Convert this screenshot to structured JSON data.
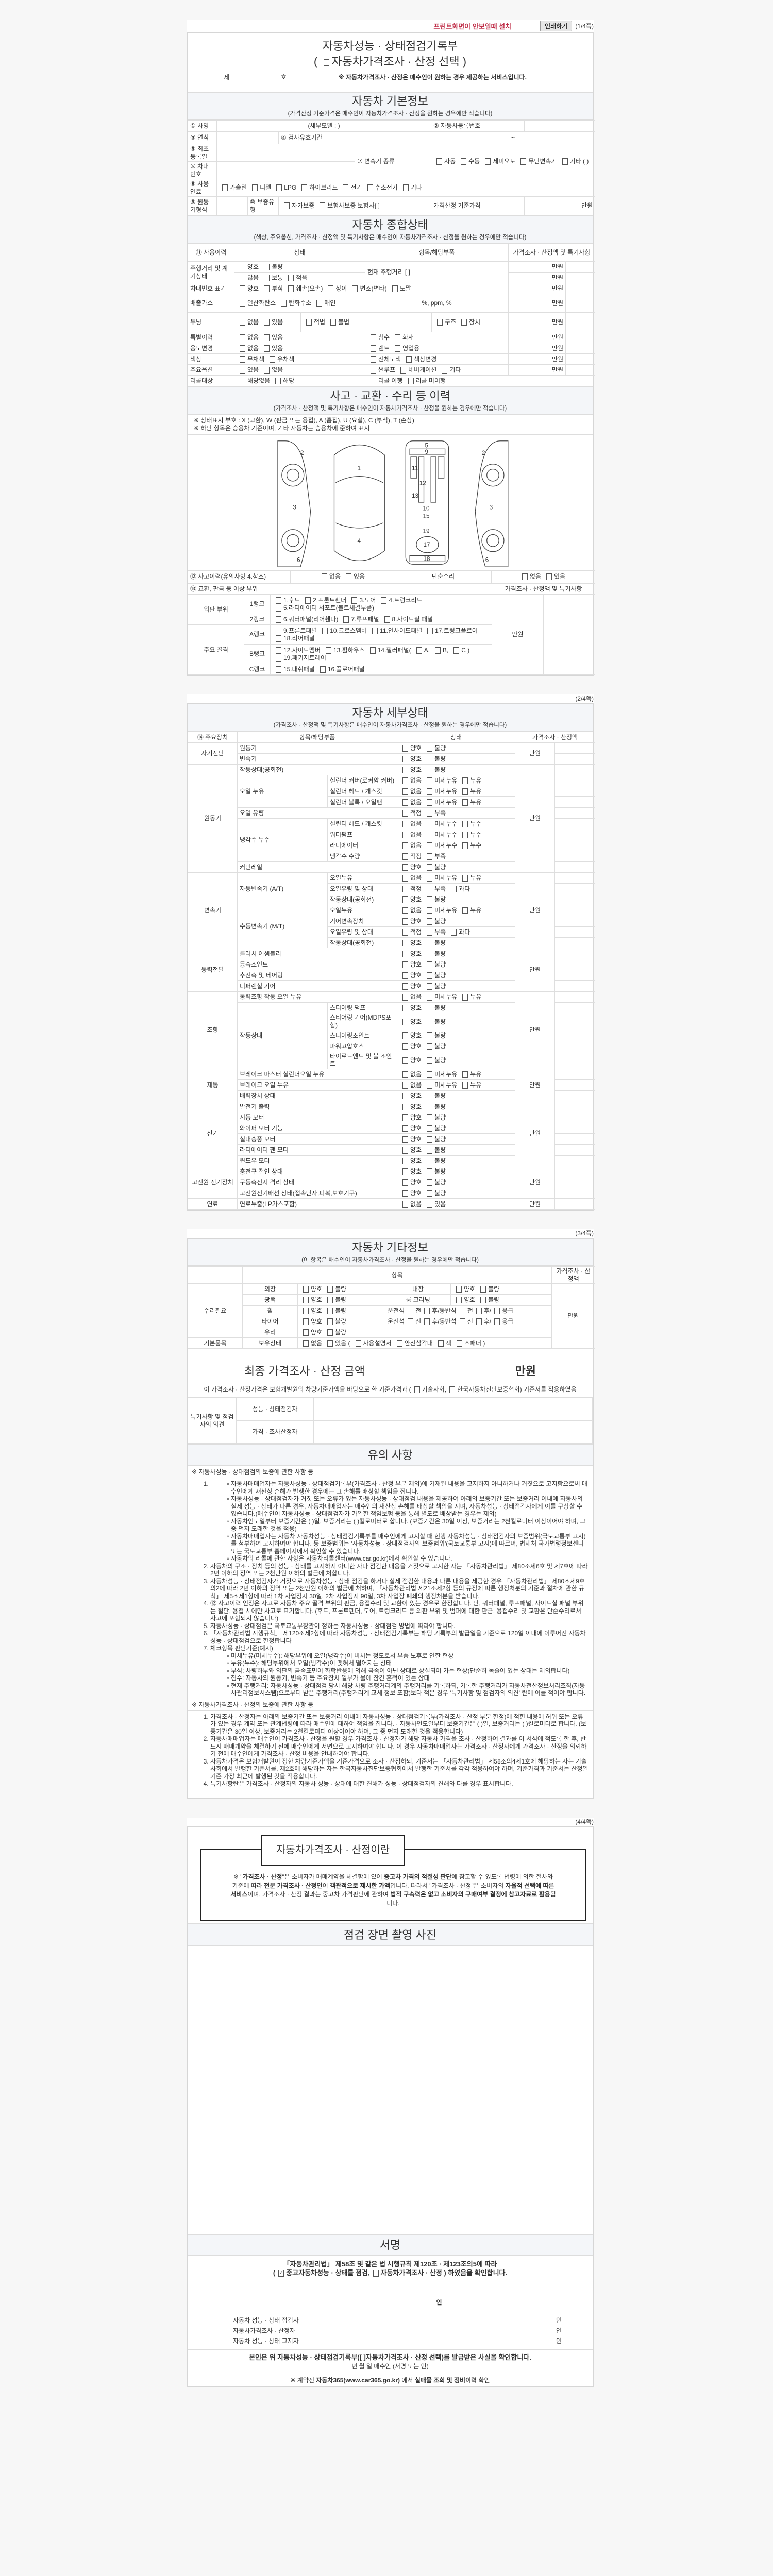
{
  "topbar": {
    "install_link": "프린트화면이 안보일때 설치",
    "print_button": "인쇄하기",
    "page1": "(1/4쪽)",
    "page2": "(2/4쪽)",
    "page3": "(3/4쪽)",
    "page4": "(4/4쪽)"
  },
  "title": {
    "line1": "자동차성능 · 상태점검기록부",
    "open": "(",
    "option": "자동차가격조사 · 산정 선택",
    "close": ")",
    "no_prefix": "제",
    "no_suffix": "호",
    "notice": "※ 자동차가격조사 · 산정은 매수인이 원하는 경우 제공하는 서비스입니다."
  },
  "basic": {
    "title": "자동차 기본정보",
    "subtitle": "(가격산정 기준가격은 매수인이 자동차가격조사 · 산정을 원하는 경우에만 적습니다)",
    "name": "① 차명",
    "detail_model": "(세부모델 :                    )",
    "reg_no": "② 자동차등록번호",
    "year": "③ 연식",
    "inspect_period": "④ 검사유효기간",
    "tilde": "~",
    "first_reg": "⑤ 최초등록일",
    "vin": "⑥ 차대번호",
    "transmission": "⑦ 변속기 종류",
    "transmission_opts": [
      "자동",
      "수동",
      "세미오토",
      "무단변속기",
      "기타 (              )"
    ],
    "fuel": "⑧ 사용연료",
    "fuel_opts": [
      "가솔린",
      "디젤",
      "LPG",
      "하이브리드",
      "전기",
      "수소전기",
      "기타"
    ],
    "engine": "⑨ 원동기형식",
    "warranty": "⑩ 보증유형",
    "warranty_opts": [
      "자가보증",
      "보험사보증 보험사[          ]"
    ],
    "base_price": "가격산정 기준가격",
    "won": "만원"
  },
  "overall": {
    "title": "자동차 종합상태",
    "subtitle": "(색상, 주요옵션, 가격조사 · 산정액 및 특기사항은 매수인이 자동차가격조사 · 산정을 원하는 경우에만 적습니다)",
    "h_history": "⑪ 사용이력",
    "h_state": "상태",
    "h_item": "항목/해당부품",
    "h_price": "가격조사 · 산정액 및 특기사항",
    "won": "만원",
    "mileage": "주행거리 및 계기상태",
    "mileage_opts1": [
      "양호",
      "불량"
    ],
    "mileage_opts2": [
      "많음",
      "보통",
      "적음"
    ],
    "mileage_now": "현재 주행거리 [                    ]",
    "vin_mark": "차대번호 표기",
    "vin_opts": [
      "양호",
      "부식",
      "훼손(오손)",
      "상이",
      "변조(변타)",
      "도말"
    ],
    "gas": "배출가스",
    "gas_opts": [
      "일산화탄소",
      "탄화수소",
      "매연"
    ],
    "gas_units": "%,          ppm,          %",
    "tuning": "튜닝",
    "tuning_opts": [
      "없음",
      "있음"
    ],
    "tuning_legal": [
      "적법",
      "불법"
    ],
    "tuning_kind": [
      "구조",
      "장치"
    ],
    "special": "특별이력",
    "special_opts": [
      "없음",
      "있음"
    ],
    "special_kind": [
      "침수",
      "화재"
    ],
    "usage": "용도변경",
    "usage_opts": [
      "없음",
      "있음"
    ],
    "usage_kind": [
      "렌트",
      "영업용"
    ],
    "color": "색상",
    "color_opts": [
      "무채색",
      "유채색"
    ],
    "color_kind": [
      "전체도색",
      "색상변경"
    ],
    "options": "주요옵션",
    "options_opts": [
      "있음",
      "없음"
    ],
    "options_kind": [
      "썬루프",
      "네비게이션",
      "기타"
    ],
    "recall": "리콜대상",
    "recall_opts": [
      "해당없음",
      "해당"
    ],
    "recall_kind": [
      "리콜 이행",
      "리콜 미이행"
    ]
  },
  "accident": {
    "title": "사고 · 교환 · 수리 등 이력",
    "subtitle": "(가격조사 · 산정액 및 특기사항은 매수인이 자동차가격조사 · 산정을 원하는 경우에만 적습니다)",
    "note1": "※ 상태표시 부호 : X (교환), W (판금 또는 용접), A (흠집), U (요철), C (부식), T (손상)",
    "note2": "※ 하단 항목은 승용차 기준이며, 기타 자동차는 승용차에 준하여 표시",
    "history": "⑫ 사고이력(유의사항 4.참조)",
    "history_opts": [
      "없음",
      "있음"
    ],
    "simple_repair": "단순수리",
    "simple_opts": [
      "없음",
      "있음"
    ],
    "abnormal": "⑬ 교환, 판금 등 이상 부위",
    "price_head": "가격조사 · 산정액 및 특기사항",
    "won": "만원",
    "outer": "외판 부위",
    "frame": "주요 골격",
    "rank1": "1랭크",
    "rank1_opts": [
      "1.후드",
      "2.프론트휀더",
      "3.도어",
      "4.트렁크리드",
      "5.라디에이터 서포트(볼트체결부품)"
    ],
    "rank2": "2랭크",
    "rank2_opts": [
      "6.쿼터패널(리어휀다)",
      "7.루프패널",
      "8.사이드실 패널"
    ],
    "rankA": "A랭크",
    "rankA_opts": [
      "9.프론트패널",
      "10.크로스멤버",
      "11.인사이드패널",
      "17.트렁크플로어",
      "18.리어패널"
    ],
    "rankB": "B랭크",
    "rankB_opts": [
      "12.사이드멤버",
      "13.휠하우스",
      "14.필러패널(",
      "A,",
      "B,",
      "C )",
      "19.패키지트레이"
    ],
    "rankC": "C랭크",
    "rankC_opts": [
      "15.대쉬패널",
      "16.플로어패널"
    ]
  },
  "diagram": {
    "n1": "1",
    "n2": "2",
    "n3": "3",
    "n4": "4",
    "n5": "5",
    "n6": "6",
    "n9": "9",
    "n10": "10",
    "n11": "11",
    "n12": "12",
    "n13": "13",
    "n15": "15",
    "n17": "17",
    "n18": "18",
    "n19": "19"
  },
  "detail": {
    "title": "자동차 세부상태",
    "subtitle": "(가격조사 · 산정액 및 특기사항은 매수인이 자동차가격조사 · 산정을 원하는 경우에만 적습니다)",
    "h_device": "⑭ 주요장치",
    "h_item": "항목/해당부품",
    "h_state": "상태",
    "h_price": "가격조사 · 산정액",
    "groups": [
      {
        "name": "자기진단",
        "amount": "만원",
        "items": [
          {
            "label": "원동기",
            "opts": [
              "양호",
              "불량"
            ]
          },
          {
            "label": "변속기",
            "opts": [
              "양호",
              "불량"
            ]
          }
        ]
      },
      {
        "name": "원동기",
        "amount": "만원",
        "items": [
          {
            "label": "작동상태(공회전)",
            "opts": [
              "양호",
              "불량"
            ]
          },
          {
            "label": "오일 누유",
            "subs": [
              {
                "label": "실린더 커버(로커암 커버)",
                "opts": [
                  "없음",
                  "미세누유",
                  "누유"
                ]
              },
              {
                "label": "실린더 헤드 / 개스킷",
                "opts": [
                  "없음",
                  "미세누유",
                  "누유"
                ]
              },
              {
                "label": "실린더 블록 / 오일팬",
                "opts": [
                  "없음",
                  "미세누유",
                  "누유"
                ]
              }
            ]
          },
          {
            "label": "오일 유량",
            "opts": [
              "적정",
              "부족"
            ]
          },
          {
            "label": "냉각수 누수",
            "subs": [
              {
                "label": "실린더 헤드 / 개스킷",
                "opts": [
                  "없음",
                  "미세누수",
                  "누수"
                ]
              },
              {
                "label": "워터펌프",
                "opts": [
                  "없음",
                  "미세누수",
                  "누수"
                ]
              },
              {
                "label": "라디에이터",
                "opts": [
                  "없음",
                  "미세누수",
                  "누수"
                ]
              },
              {
                "label": "냉각수 수량",
                "opts": [
                  "적정",
                  "부족"
                ]
              }
            ]
          },
          {
            "label": "커먼레일",
            "opts": [
              "양호",
              "불량"
            ]
          }
        ]
      },
      {
        "name": "변속기",
        "amount": "만원",
        "items": [
          {
            "label": "자동변속기 (A/T)",
            "subs": [
              {
                "label": "오일누유",
                "opts": [
                  "없음",
                  "미세누유",
                  "누유"
                ]
              },
              {
                "label": "오일유량 및 상태",
                "opts": [
                  "적정",
                  "부족",
                  "과다"
                ]
              },
              {
                "label": "작동상태(공회전)",
                "opts": [
                  "양호",
                  "불량"
                ]
              }
            ]
          },
          {
            "label": "수동변속기 (M/T)",
            "subs": [
              {
                "label": "오일누유",
                "opts": [
                  "없음",
                  "미세누유",
                  "누유"
                ]
              },
              {
                "label": "기어변속장치",
                "opts": [
                  "양호",
                  "불량"
                ]
              },
              {
                "label": "오일유량 및 상태",
                "opts": [
                  "적정",
                  "부족",
                  "과다"
                ]
              },
              {
                "label": "작동상태(공회전)",
                "opts": [
                  "양호",
                  "불량"
                ]
              }
            ]
          }
        ]
      },
      {
        "name": "동력전달",
        "amount": "만원",
        "items": [
          {
            "label": "클러치 어셈블리",
            "opts": [
              "양호",
              "불량"
            ]
          },
          {
            "label": "등속조인트",
            "opts": [
              "양호",
              "불량"
            ]
          },
          {
            "label": "추진축 및 베어링",
            "opts": [
              "양호",
              "불량"
            ]
          },
          {
            "label": "디퍼렌셜 기어",
            "opts": [
              "양호",
              "불량"
            ]
          }
        ]
      },
      {
        "name": "조향",
        "amount": "만원",
        "items": [
          {
            "label": "동력조향 작동 오일 누유",
            "opts": [
              "없음",
              "미세누유",
              "누유"
            ]
          },
          {
            "label": "작동상태",
            "subs": [
              {
                "label": "스티어링 펌프",
                "opts": [
                  "양호",
                  "불량"
                ]
              },
              {
                "label": "스티어링 기어(MDPS포함)",
                "opts": [
                  "양호",
                  "불량"
                ]
              },
              {
                "label": "스티어링조인트",
                "opts": [
                  "양호",
                  "불량"
                ]
              },
              {
                "label": "파워고압호스",
                "opts": [
                  "양호",
                  "불량"
                ]
              },
              {
                "label": "타이로드엔드 및 볼 조인트",
                "opts": [
                  "양호",
                  "불량"
                ]
              }
            ]
          }
        ]
      },
      {
        "name": "제동",
        "amount": "만원",
        "items": [
          {
            "label": "브레이크 마스터 실린더오일 누유",
            "opts": [
              "없음",
              "미세누유",
              "누유"
            ]
          },
          {
            "label": "브레이크 오일 누유",
            "opts": [
              "없음",
              "미세누유",
              "누유"
            ]
          },
          {
            "label": "배력장치 상태",
            "opts": [
              "양호",
              "불량"
            ]
          }
        ]
      },
      {
        "name": "전기",
        "amount": "만원",
        "items": [
          {
            "label": "발전기 출력",
            "opts": [
              "양호",
              "불량"
            ]
          },
          {
            "label": "시동 모터",
            "opts": [
              "양호",
              "불량"
            ]
          },
          {
            "label": "와이퍼 모터 기능",
            "opts": [
              "양호",
              "불량"
            ]
          },
          {
            "label": "실내송풍 모터",
            "opts": [
              "양호",
              "불량"
            ]
          },
          {
            "label": "라디에이터 팬 모터",
            "opts": [
              "양호",
              "불량"
            ]
          },
          {
            "label": "윈도우 모터",
            "opts": [
              "양호",
              "불량"
            ]
          }
        ]
      },
      {
        "name": "고전원 전기장치",
        "amount": "만원",
        "items": [
          {
            "label": "충전구 절연 상태",
            "opts": [
              "양호",
              "불량"
            ]
          },
          {
            "label": "구동축전지 격리 상태",
            "opts": [
              "양호",
              "불량"
            ]
          },
          {
            "label": "고전원전기배선 상태(접속단자,피복,보호기구)",
            "opts": [
              "양호",
              "불량"
            ]
          }
        ]
      },
      {
        "name": "연료",
        "amount": "만원",
        "items": [
          {
            "label": "연료누출(LP가스포함)",
            "opts": [
              "없음",
              "있음"
            ]
          }
        ]
      }
    ]
  },
  "etc": {
    "title": "자동차 기타정보",
    "subtitle": "(이 항목은 매수인이 자동차가격조사 · 산정을 원하는 경우에만 적습니다)",
    "h_item": "항목",
    "h_price": "가격조사 · 산정액",
    "won": "만원",
    "repair": "수리필요",
    "exterior": "외장",
    "interior": "내장",
    "gloss": "광택",
    "room": "룸 크리닝",
    "wheel": "휠",
    "tire": "타이어",
    "glass": "유리",
    "good_bad": [
      "양호",
      "불량"
    ],
    "driver": "운전석",
    "passenger": "동반석",
    "front": "전",
    "rear": "후",
    "slash": "/",
    "spare": "응급",
    "basic_items": "기본품목",
    "holding": "보유상태",
    "hold_opts": [
      "없음",
      "있음 ("
    ],
    "hold_items": [
      "사용설명서",
      "안전삼각대",
      "잭",
      "스패너 )"
    ]
  },
  "final": {
    "label": "최종 가격조사 · 산정 금액",
    "won": "만원",
    "stmt_a": "이 가격조사 · 산정가격은 보험개발원의 차량기준가액을 바탕으로 한 기준가격과 (",
    "opt1": "기술사회,",
    "opt2": "한국자동차진단보증협회) 기준서를 적용하였음",
    "opinion": "특기사항 및 점검자의 의견",
    "inspector": "성능 · 상태점검자",
    "appraiser": "가격 · 조사산정자"
  },
  "caution": {
    "title": "유의 사항",
    "s1_title": "※ 자동차성능 · 상태점검의 보증에 관한 사항 등",
    "s1_item1_subs": [
      "자동차매매업자는 자동차성능 · 상태점검기록부(가격조사 · 산정 부분 제외)에 기재된 내용을 고지하지 아니하거나 거짓으로 고지함으로써 매수인에게 재산상 손해가 발생한 경우에는 그 손해를 배상할 책임을 집니다.",
      "자동차성능 · 상태점검자가 거짓 또는 오류가 있는 자동차성능 · 상태점검 내용을 제공하여 아래의 보증기간 또는 보증거리 이내에 자동차의 실제 성능 · 상태가 다른 경우, 자동차매매업자는 매수인의 재산상 손해를 배상할 책임을 지며, 자동차성능 · 상태점검자에게 이를 구상할 수 있습니다.(매수인이 자동차성능 · 상태점검자가 가입한 책임보험 등을 통해 별도로 배상받는 경우는 제외)",
      "자동차인도일부터 보증기간은 (      )일, 보증거리는 (      )킬로미터로 합니다. (보증기간은 30일 이상, 보증거리는 2천킬로미터 이상이어야 하며, 그 중 먼저 도래한 것을 적용)",
      "자동차매매업자는 자동차 자동차성능 · 상태점검기록부를 매수인에게 고지할 때 현행 자동차성능 · 상태점검자의 보증범위(국토교통부 고시)를 첨부하여 고지하여야 합니다. 동 보증범위는 '자동차성능 · 상태점검자의 보증범위'(국토교통부 고시)에 따르며, 법제처 국가법령정보센터 또는 국토교통부 홈페이지에서 확인할 수 있습니다.",
      "자동차의 리콜에 관한 사항은 자동차리콜센터(www.car.go.kr)에서 확인할 수 있습니다."
    ],
    "s1_items": [
      "자동차의 구조 · 장치 등의 성능 · 상태를 고지하지 아니한 자나 점검한 내용을 거짓으로 고지한 자는 「자동차관리법」 제80조제6호 및 제7호에 따라 2년 이하의 징역 또는 2천만원 이하의 벌금에 처합니다.",
      "자동차성능 · 상태점검자가 거짓으로 자동차성능 · 상태 점검을 하거나 실제 점검한 내용과 다른 내용을 제공한 경우 「자동차관리법」 제80조제9호의2에 따라 2년 이하의 징역 또는 2천만원 이하의 벌금에 처하며, 「자동차관리법 제21조제2항 등의 규정에 따른 행정처분의 기준과 절차에 관한 규칙」 제5조제1항에 따라 1차 사업정지 30일, 2차 사업정지 90일, 3차 사업장 폐쇄의 행정처분을 받습니다.",
      "⑫ 사고이력 인정은 사고로 자동차 주요 골격 부위의 판금, 용접수리 및 교환이 있는 경우로 한정합니다. 단, 쿼터패널, 루프패널, 사이드실 패널 부위는 절단, 용접 시에만 사고로 표기합니다. (후드, 프론트펜더, 도어, 트렁크리드 등 외판 부위 및 범퍼에 대한 판금, 용접수리 및 교환은 단순수리로서 사고에 포함되지 않습니다)",
      "자동차성능 · 상태점검은 국토교통부장관이 정하는 자동차성능 · 상태점검 방법에 따라야 합니다.",
      "「자동차관리법 시행규칙」 제120조제2항에 따라 자동차성능 · 상태점검기록부는 해당 기록부의 발급일을 기준으로 120일 이내에 이루어진 자동차 성능 · 상태점검으로 한정합니다",
      "체크항목 판단기준(예시)"
    ],
    "s1_item7_subs": [
      "미세누유(미세누수): 해당부위에 오일(냉각수)이 비치는 정도로서 부품 노후로 인한 현상",
      "누유(누수): 해당부위에서 오일(냉각수)이 맺혀서 떨어지는 상태",
      "부식: 차량하부와 외판의 금속표면이 화학반응에 의해 금속이 아닌 상태로 상실되어 가는 현상(단순히 녹슬어 있는 상태는 제외합니다)",
      "침수: 자동차의 원동기, 변속기 등 주요장치 일부가 물에 잠긴 흔적이 있는 상태",
      "현재 주행거리: 자동차성능 · 상태점검 당시 해당 차량 주행거리계의 주행거리를 기록하되, 기록한 주행거리가 자동차전산정보처리조직(자동차관리정보시스템)으로부터 받은 주행거리(주행거리계 교체 정보 포함)보다 적은 경우 '특기사항 및 점검자의 의견' 란에 이를 적어야 합니다."
    ],
    "s2_title": "※ 자동차가격조사 · 산정의 보증에 관한 사항 등",
    "s2_items": [
      "가격조사 · 산정자는 아래의 보증기간 또는 보증거리 이내에 자동차성능 · 상태점검기록부(가격조사 · 산정 부분 한정)에 적힌 내용에 허위 또는 오류가 있는 경우 계약 또는 관계법령에 따라 매수인에 대하여 책임을 집니다. · 자동차인도일부터 보증기간은 (      )일, 보증거리는 (      )킬로미터로 합니다. (보증기간은 30일 이상, 보증거리는 2천킬로미터 이상이어야 하며, 그 중 먼저 도래한 것을 적용합니다)",
      "자동차매매업자는 매수인이 가격조사 · 산정을 원할 경우 가격조사 · 산정자가 해당 자동차 가격을 조사 · 산정하여 결과를 이 서식에 적도록 한 후, 반드시 매매계약을 체결하기 전에 매수인에게 서면으로 고지하여야 합니다. 이 경우 자동차매매업자는 가격조사 · 산정자에게 가격조사 · 산정을 의뢰하기 전에 매수인에게 가격조사 · 산정 비용을 안내하여야 합니다.",
      "자동차가격은 보험개발원이 정한 차량기준가액을 기준가격으로 조사 · 산정하되, 기준서는 「자동차관리법」 제58조의4제1호에 해당하는 자는 기술사회에서 발행한 기준서를, 제2호에 해당하는 자는 한국자동차진단보증협회에서 발행한 기준서를 각각 적용하여야 하며, 기준가격과 기준서는 산정일 기준 가장 최근에 발행된 것을 적용합니다.",
      "특기사항란은 가격조사 · 산정자의 자동차 성능 · 상태에 대한 견해가 성능 · 상태점검자의 견해와 다를 경우 표시합니다."
    ]
  },
  "what": {
    "title": "자동차가격조사 · 산정이란",
    "parts": [
      {
        "t": "※ \"",
        "b": false
      },
      {
        "t": "가격조사 · 산정",
        "b": true
      },
      {
        "t": "\"은 소비자가 매매계약을 체결함에 있어 ",
        "b": false
      },
      {
        "t": "중고차 가격의 적절성 판단",
        "b": true
      },
      {
        "t": "에 참고할 수 있도록 법령에 의한 절차와 기준에 따라 ",
        "b": false
      },
      {
        "t": "전문 가격조사 · 산정인",
        "b": true
      },
      {
        "t": "이 ",
        "b": false
      },
      {
        "t": "객관적으로 제시한 가액",
        "b": true
      },
      {
        "t": "입니다. 따라서 \"가격조사 · 산정\"은 소비자의 ",
        "b": false
      },
      {
        "t": "자율적 선택에 따른 서비스",
        "b": true
      },
      {
        "t": "이며, 가격조사 · 산정 결과는 중고차 가격판단에 관하여 ",
        "b": false
      },
      {
        "t": "법적 구속력은 없고 소비자의 구매여부 결정에 참고자료로 활용",
        "b": true
      },
      {
        "t": "됩니다.",
        "b": false
      }
    ]
  },
  "photo": {
    "title": "점검 장면 촬영 사진"
  },
  "sign": {
    "title": "서명",
    "law": "「자동차관리법」 제58조 및 같은 법 시행규칙 제120조 · 제123조의5에 따라",
    "open": "(",
    "opt_checked": "중고자동차성능 · 상태를 점검,",
    "opt_unchecked": "자동차가격조사 · 산정",
    "close": ") 하였음을 확인합니다.",
    "seal": "인",
    "signers": [
      "자동차 성능 · 상태 점검자",
      "자동차가격조사 · 산정자",
      "자동차 성능 · 상태 고지자"
    ],
    "confirm": "본인은 위 자동차성능 · 상태점검기록부([   ]자동차가격조사 · 산정 선택)를 발급받은 사실을 확인합니다.",
    "date": "년     월     일     매수인                    (서명 또는 인)",
    "c365_a": "※ 계약전 ",
    "c365_b": "자동차365(www.car365.go.kr)",
    "c365_c": " 에서 ",
    "c365_d": "실매물 조회 및 정비이력",
    "c365_e": " 확인"
  }
}
